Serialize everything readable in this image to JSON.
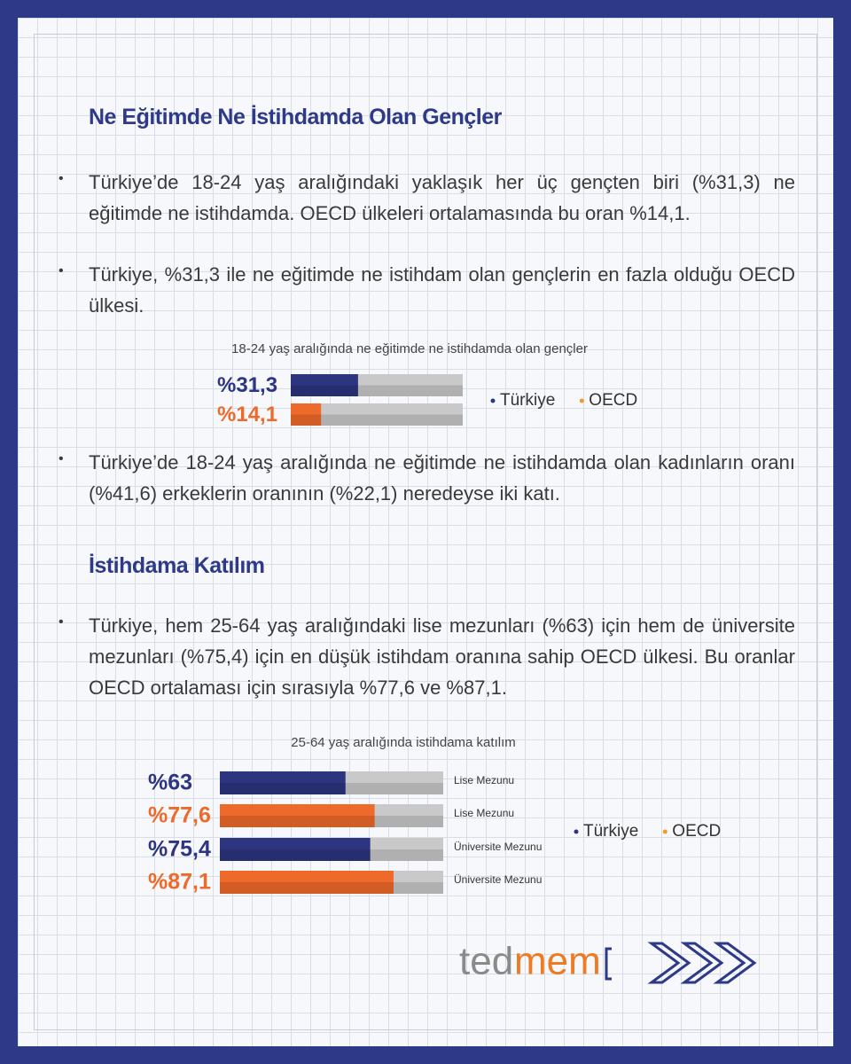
{
  "sections": [
    {
      "title": "Ne Eğitimde Ne İstihdamda Olan Gençler",
      "bullets": [
        "Türkiye’de 18-24 yaş aralığındaki yaklaşık her üç gençten biri (%31,3) ne eğitimde ne istihdamda. OECD ülkeleri ortalamasında bu oran %14,1.",
        "Türkiye, %31,3 ile ne eğitimde ne istihdam olan gençlerin en fazla olduğu OECD ülkesi.",
        "Türkiye’de 18-24 yaş aralığında ne eğitimde ne istihdamda olan kadınların oranı (%41,6) erkeklerin oranının (%22,1) neredeyse iki katı."
      ]
    },
    {
      "title": "İstihdama Katılım",
      "bullets": [
        "Türkiye, hem 25-64 yaş aralığındaki lise mezunları (%63) için hem de üniversite mezunları (%75,4) için en düşük istihdam oranına sahip OECD ülkesi. Bu oranlar OECD ortalaması için sırasıyla %77,6 ve %87,1."
      ]
    }
  ],
  "chart_data": [
    {
      "type": "hbar",
      "title": "18-24 yaş aralığında ne eğitimde ne istihdamda olan gençler",
      "values": [
        31.3,
        14.1
      ],
      "value_labels": [
        "%31,3",
        "%14,1"
      ],
      "colors": [
        "#2d3580",
        "#ee6a2a"
      ],
      "xlim": [
        0,
        80
      ],
      "legend": [
        {
          "name": "Türkiye",
          "color": "#2d3580"
        },
        {
          "name": "OECD",
          "color": "#f29a2e"
        }
      ]
    },
    {
      "type": "hbar",
      "title": "25-64 yaş aralığında istihdama katılım",
      "categories": [
        "Lise Mezunu",
        "Lise Mezunu",
        "Üniversite Mezunu",
        "Üniversite Mezunu"
      ],
      "values": [
        63,
        77.6,
        75.4,
        87.1
      ],
      "value_labels": [
        "%63",
        "%77,6",
        "%75,4",
        "%87,1"
      ],
      "colors": [
        "#2d3580",
        "#ee6a2a",
        "#2d3580",
        "#ee6a2a"
      ],
      "xlim": [
        0,
        112
      ],
      "legend": [
        {
          "name": "Türkiye",
          "color": "#2d3580"
        },
        {
          "name": "OECD",
          "color": "#f29a2e"
        }
      ]
    }
  ],
  "logo": {
    "part_1": "ted",
    "part_2": "mem"
  }
}
